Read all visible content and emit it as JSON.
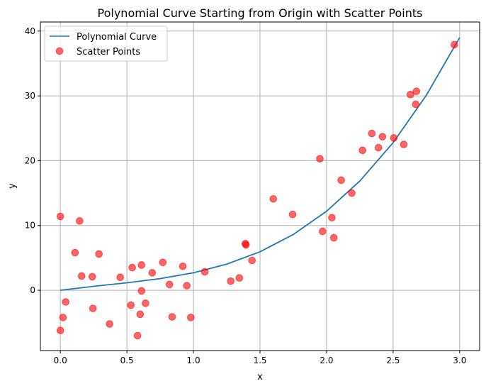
{
  "chart_data": {
    "type": "line+scatter",
    "title": "Polynomial Curve Starting from Origin with Scatter Points",
    "xlabel": "x",
    "ylabel": "y",
    "xlim": [
      -0.15,
      3.15
    ],
    "ylim": [
      -9.3,
      41.4
    ],
    "xticks": [
      0.0,
      0.5,
      1.0,
      1.5,
      2.0,
      2.5,
      3.0
    ],
    "xtick_labels": [
      "0.0",
      "0.5",
      "1.0",
      "1.5",
      "2.0",
      "2.5",
      "3.0"
    ],
    "yticks": [
      0,
      10,
      20,
      30,
      40
    ],
    "ytick_labels": [
      "0",
      "10",
      "20",
      "30",
      "40"
    ],
    "grid": true,
    "legend_position": "top-left",
    "series": [
      {
        "name": "Polynomial Curve",
        "type": "line",
        "color": "#1f77b4",
        "x": [
          0,
          0.25,
          0.5,
          0.75,
          1.0,
          1.25,
          1.5,
          1.75,
          2.0,
          2.25,
          2.5,
          2.75,
          3.0
        ],
        "y": [
          0,
          0.61,
          1.16,
          1.8,
          2.7,
          4.03,
          5.94,
          8.61,
          12.2,
          16.86,
          22.78,
          30.11,
          39.0
        ]
      },
      {
        "name": "Scatter Points",
        "type": "scatter",
        "color": "#ff0000",
        "points": [
          [
            0.0,
            11.4
          ],
          [
            0.145,
            10.7
          ],
          [
            0.11,
            5.8
          ],
          [
            0.29,
            5.6
          ],
          [
            0.16,
            2.2
          ],
          [
            0.24,
            2.1
          ],
          [
            0.45,
            2.0
          ],
          [
            0.04,
            -1.8
          ],
          [
            0.02,
            -4.2
          ],
          [
            0.0,
            -6.2
          ],
          [
            0.245,
            -2.8
          ],
          [
            0.37,
            -5.2
          ],
          [
            0.54,
            3.5
          ],
          [
            0.61,
            3.9
          ],
          [
            0.69,
            2.7
          ],
          [
            0.77,
            4.3
          ],
          [
            0.92,
            3.7
          ],
          [
            0.82,
            0.9
          ],
          [
            0.95,
            0.7
          ],
          [
            0.61,
            -0.1
          ],
          [
            0.53,
            -2.3
          ],
          [
            0.64,
            -2.0
          ],
          [
            0.6,
            -3.7
          ],
          [
            0.84,
            -4.1
          ],
          [
            0.98,
            -4.2
          ],
          [
            0.58,
            -7.0
          ],
          [
            1.085,
            2.85
          ],
          [
            1.28,
            1.4
          ],
          [
            1.345,
            1.9
          ],
          [
            1.39,
            7.2
          ],
          [
            1.395,
            7.0
          ],
          [
            1.44,
            4.6
          ],
          [
            1.6,
            14.1
          ],
          [
            1.745,
            11.7
          ],
          [
            1.95,
            20.3
          ],
          [
            1.97,
            9.1
          ],
          [
            2.04,
            11.2
          ],
          [
            2.055,
            8.1
          ],
          [
            2.11,
            17.0
          ],
          [
            2.19,
            15.0
          ],
          [
            2.27,
            21.6
          ],
          [
            2.34,
            24.2
          ],
          [
            2.39,
            22.0
          ],
          [
            2.42,
            23.7
          ],
          [
            2.505,
            23.5
          ],
          [
            2.58,
            22.5
          ],
          [
            2.63,
            30.2
          ],
          [
            2.675,
            30.7
          ],
          [
            2.67,
            28.7
          ],
          [
            2.96,
            37.9
          ]
        ]
      }
    ]
  }
}
